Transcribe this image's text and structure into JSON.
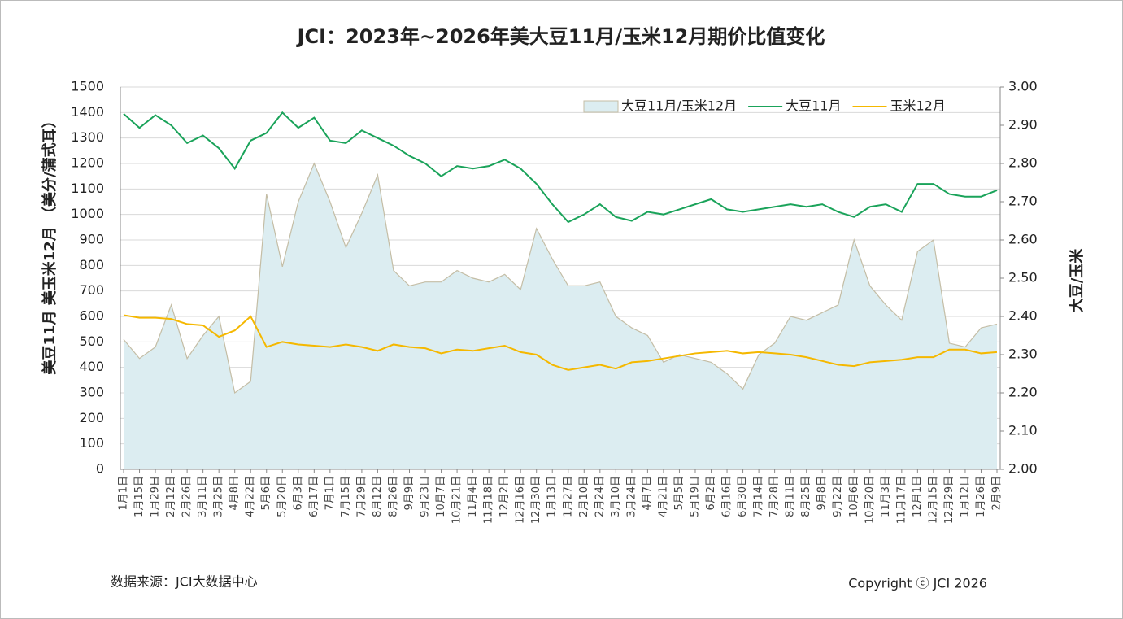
{
  "chart_data": {
    "type": "line",
    "title": "JCI：2023年~2026年美大豆11月/玉米12月期价比值变化",
    "y_label": "美豆11月  美玉米12月    （美分/蒲式耳）",
    "y2_label": "大豆/玉米",
    "source": "数据来源：JCI大数据中心",
    "copyright": "Copyright ⓒ JCI 2026",
    "legend": "upper right",
    "grid": true,
    "categories": [
      "1月1日",
      "1月15日",
      "1月29日",
      "2月12日",
      "2月26日",
      "3月11日",
      "3月25日",
      "4月8日",
      "4月22日",
      "5月6日",
      "5月20日",
      "6月3日",
      "6月17日",
      "7月1日",
      "7月15日",
      "7月29日",
      "8月12日",
      "8月26日",
      "9月9日",
      "9月23日",
      "10月7日",
      "10月21日",
      "11月4日",
      "11月18日",
      "12月2日",
      "12月16日",
      "12月30日",
      "1月13日",
      "1月27日",
      "2月10日",
      "2月24日",
      "3月10日",
      "3月24日",
      "4月7日",
      "4月21日",
      "5月5日",
      "5月19日",
      "6月2日",
      "6月16日",
      "6月30日",
      "7月14日",
      "7月28日",
      "8月11日",
      "8月25日",
      "9月8日",
      "9月22日",
      "10月6日",
      "10月20日",
      "11月3日",
      "11月17日",
      "12月1日",
      "12月15日",
      "12月29日",
      "1月12日",
      "1月26日",
      "2月9日"
    ],
    "ylim": [
      0,
      1500
    ],
    "yticks": [
      0,
      100,
      200,
      300,
      400,
      500,
      600,
      700,
      800,
      900,
      1000,
      1100,
      1200,
      1300,
      1400,
      1500
    ],
    "y2lim": [
      2,
      3
    ],
    "y2ticks": [
      {
        "value": 2,
        "label": "2.00"
      },
      {
        "value": 2.1,
        "label": "2.10"
      },
      {
        "value": 2.2,
        "label": "2.20"
      },
      {
        "value": 2.3,
        "label": "2.30"
      },
      {
        "value": 2.4,
        "label": "2.40"
      },
      {
        "value": 2.5,
        "label": "2.50"
      },
      {
        "value": 2.6,
        "label": "2.60"
      },
      {
        "value": 2.7,
        "label": "2.70"
      },
      {
        "value": 2.8,
        "label": "2.80"
      },
      {
        "value": 2.9,
        "label": "2.90"
      },
      {
        "value": 3,
        "label": "3.00"
      }
    ],
    "series": [
      {
        "name": "大豆11月/玉米12月",
        "type": "area",
        "axis": "y2",
        "color": "#dcedf1",
        "edge": "#c4bda5",
        "values": [
          2.34,
          2.29,
          2.32,
          2.43,
          2.29,
          2.35,
          2.4,
          2.2,
          2.23,
          2.72,
          2.53,
          2.7,
          2.8,
          2.7,
          2.58,
          2.67,
          2.77,
          2.52,
          2.48,
          2.49,
          2.49,
          2.52,
          2.5,
          2.49,
          2.51,
          2.47,
          2.63,
          2.55,
          2.48,
          2.48,
          2.49,
          2.4,
          2.37,
          2.35,
          2.28,
          2.3,
          2.29,
          2.28,
          2.25,
          2.21,
          2.3,
          2.33,
          2.4,
          2.39,
          2.41,
          2.43,
          2.6,
          2.48,
          2.43,
          2.39,
          2.57,
          2.6,
          2.33,
          2.32,
          2.37,
          2.38
        ]
      },
      {
        "name": "大豆11月",
        "type": "line",
        "color": "#1aa35a",
        "values": [
          1395,
          1340,
          1390,
          1350,
          1280,
          1310,
          1260,
          1180,
          1290,
          1320,
          1400,
          1340,
          1380,
          1290,
          1280,
          1330,
          1300,
          1270,
          1230,
          1200,
          1150,
          1190,
          1180,
          1190,
          1215,
          1180,
          1120,
          1040,
          970,
          1000,
          1040,
          990,
          975,
          1010,
          1000,
          1020,
          1040,
          1060,
          1020,
          1010,
          1020,
          1030,
          1040,
          1030,
          1040,
          1010,
          990,
          1030,
          1040,
          1010,
          1120,
          1120,
          1080,
          1070,
          1070,
          1095
        ]
      },
      {
        "name": "玉米12月",
        "type": "line",
        "color": "#f5b800",
        "values": [
          605,
          595,
          595,
          590,
          570,
          565,
          520,
          545,
          600,
          480,
          500,
          490,
          485,
          480,
          490,
          480,
          465,
          490,
          480,
          475,
          455,
          470,
          465,
          475,
          485,
          460,
          450,
          410,
          390,
          400,
          410,
          395,
          420,
          425,
          435,
          445,
          455,
          460,
          465,
          455,
          460,
          455,
          450,
          440,
          425,
          410,
          405,
          420,
          425,
          430,
          440,
          440,
          470,
          470,
          455,
          460
        ]
      }
    ]
  }
}
